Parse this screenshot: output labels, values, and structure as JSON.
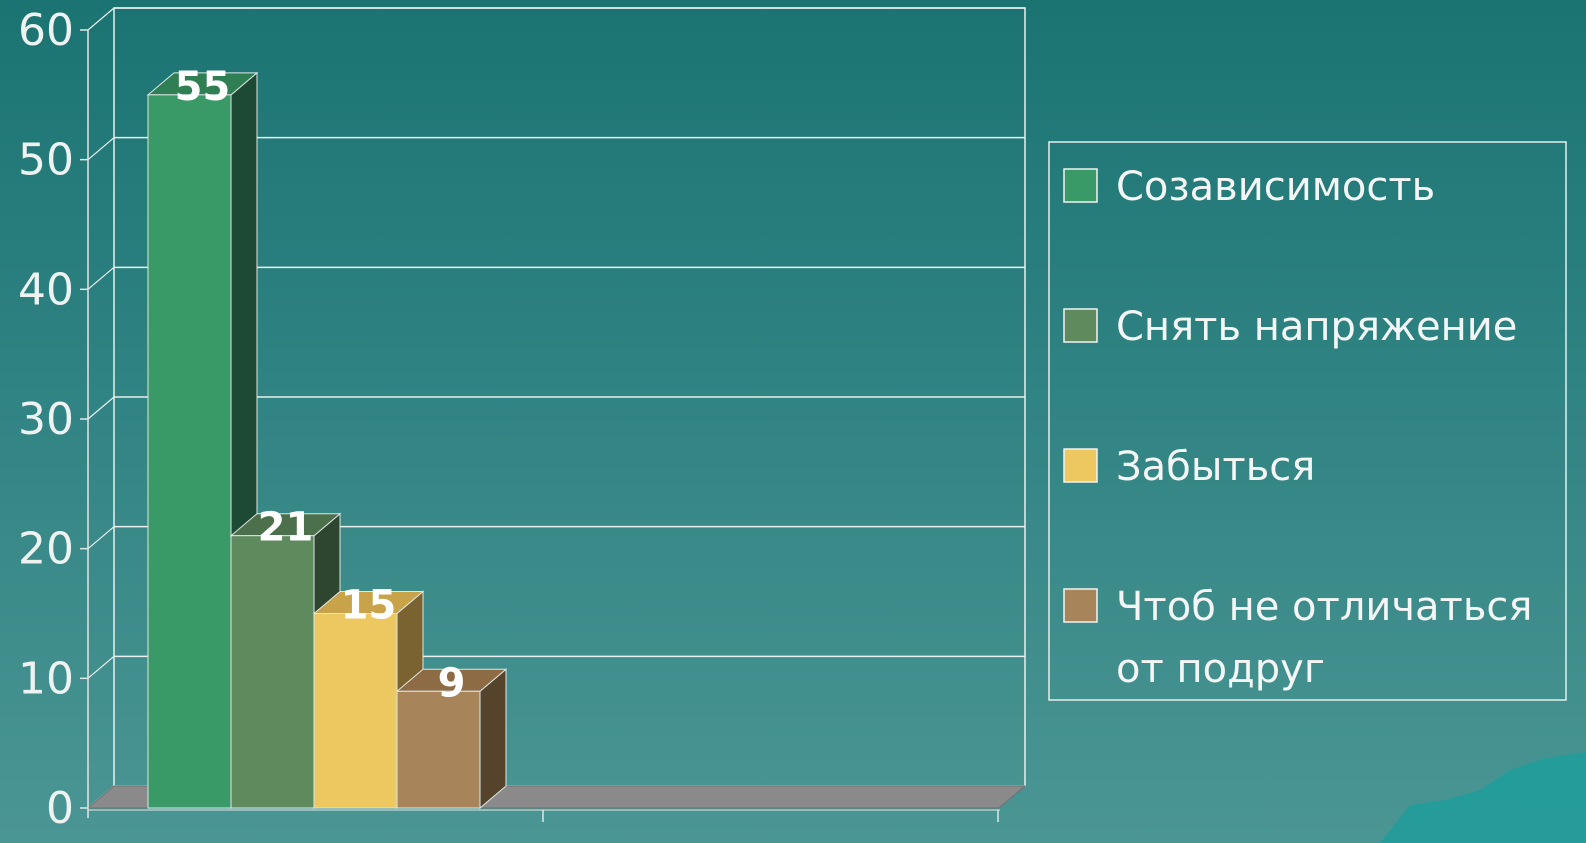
{
  "chart_data": {
    "type": "bar",
    "categories": [
      "Созависимость",
      "Снять напряжение",
      "Забыться",
      "Чтоб не отличаться от подруг"
    ],
    "values": [
      55,
      21,
      15,
      9
    ],
    "data_labels": [
      "55",
      "21",
      "15",
      "9"
    ],
    "title": "",
    "xlabel": "",
    "ylabel": "",
    "ylim": [
      0,
      60
    ],
    "yticks": [
      0,
      10,
      20,
      30,
      40,
      50,
      60
    ],
    "ytick_labels": [
      "0",
      "10",
      "20",
      "30",
      "40",
      "50",
      "60"
    ],
    "grid": true,
    "style": "3d-column",
    "legend": {
      "position": "right",
      "entries": [
        {
          "lines": [
            "Созависимость"
          ],
          "color": "#3a9a67"
        },
        {
          "lines": [
            "Снять напряжение"
          ],
          "color": "#5f8a5e"
        },
        {
          "lines": [
            "Забыться"
          ],
          "color": "#edc75f"
        },
        {
          "lines": [
            "Чтоб не отличаться",
            "от подруг"
          ],
          "color": "#a8845a"
        }
      ]
    },
    "colors": {
      "bar_front": [
        "#3a9a67",
        "#5f8a5e",
        "#edc75f",
        "#a8845a"
      ],
      "bar_side": [
        "#1d4a34",
        "#2e4530",
        "#7a6330",
        "#55442b"
      ],
      "bar_top": [
        "#2f7e54",
        "#4b704b",
        "#c9a34a",
        "#8c6b45"
      ],
      "gridline": "#e9f0ef",
      "floor": "#8a8a8a",
      "axis": "#dfe7e6"
    }
  }
}
